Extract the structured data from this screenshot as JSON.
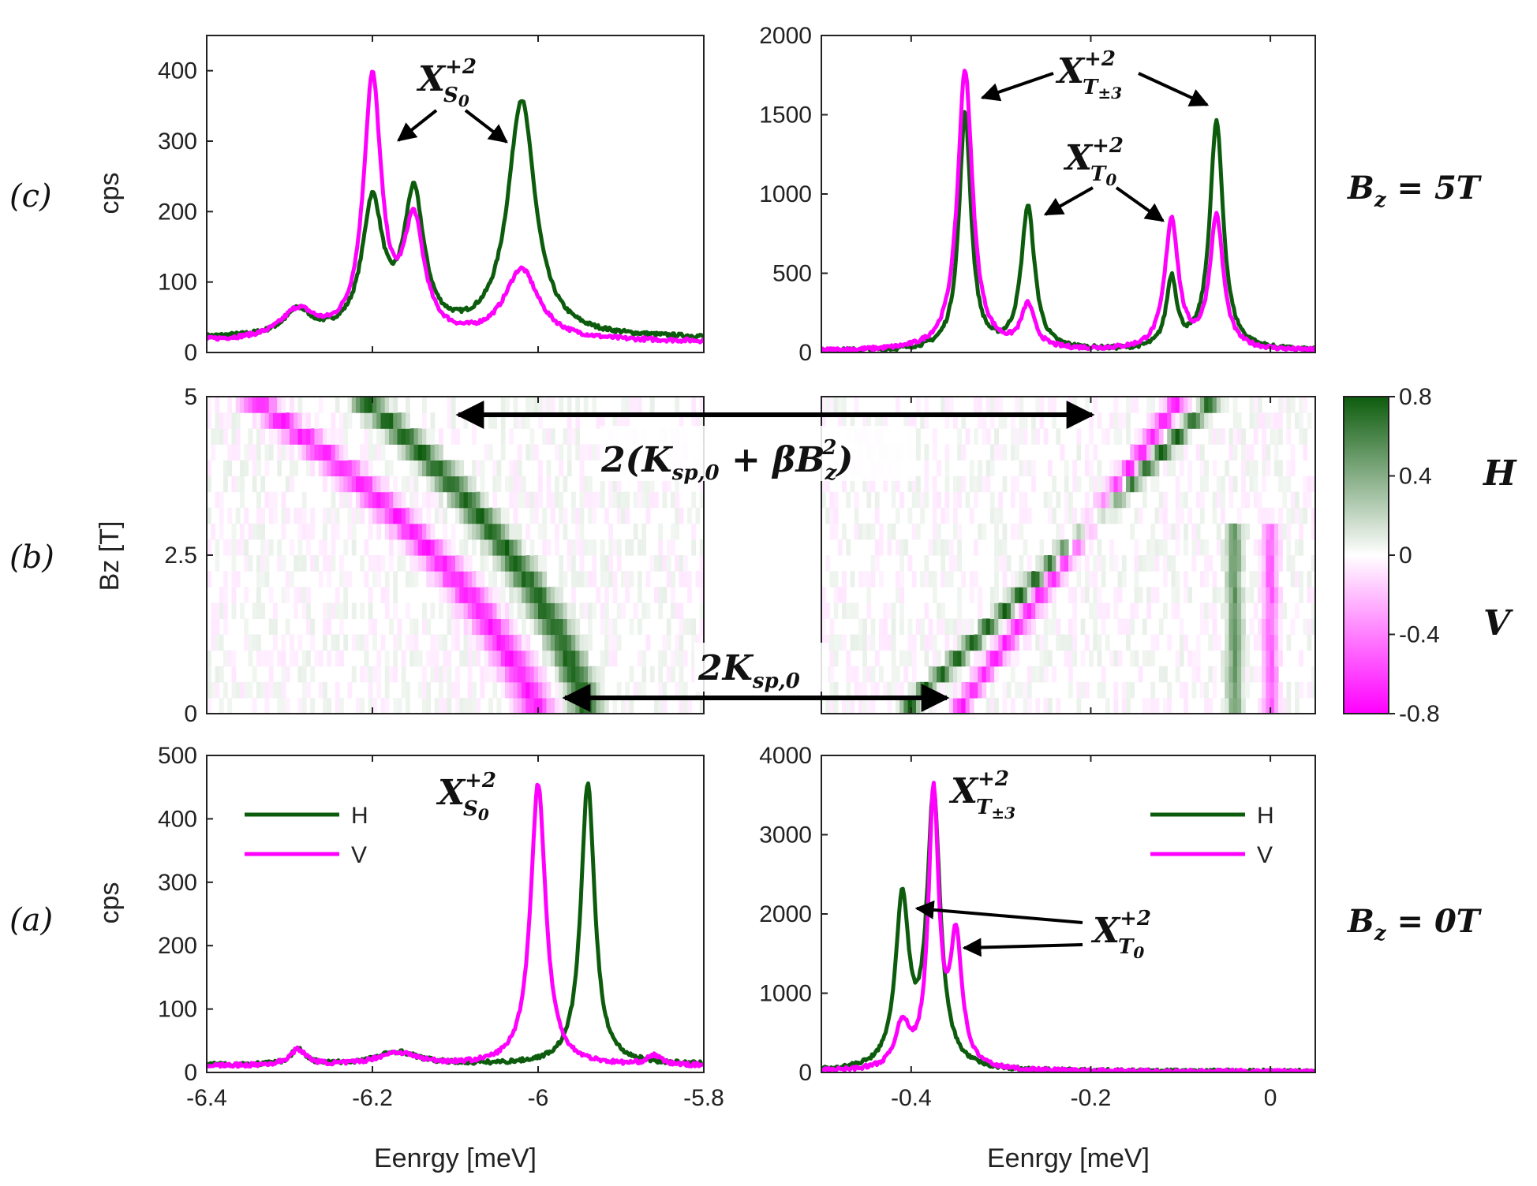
{
  "colors": {
    "H": "#0d5c0d",
    "V": "#ff00ff"
  },
  "labels": {
    "panel_c": "(c)",
    "panel_b": "(b)",
    "panel_a": "(a)",
    "bz_5": "B",
    "bz_5_sub": "z",
    "bz_5_val": " = 5T",
    "bz_0": "B",
    "bz_0_sub": "z",
    "bz_0_val": " = 0T",
    "ylabel_cps": "cps",
    "ylabel_bz": "Bz [T]",
    "xlabel": "Eenrgy [meV]",
    "legend_H": "H",
    "legend_V": "V",
    "colorbar_H": "H",
    "colorbar_V": "V",
    "ann_XS0_main": "X",
    "ann_XS0_sup": "+2",
    "ann_XS0_sub": "S",
    "ann_XS0_sub0": "0",
    "ann_XT3_main": "X",
    "ann_XT3_sup": "+2",
    "ann_XT3_sub": "T",
    "ann_XT3_subsub": "±3",
    "ann_XT0_main": "X",
    "ann_XT0_sup": "+2",
    "ann_XT0_sub": "T",
    "ann_XT0_subsub": "0",
    "ann_K_top": "2(K",
    "ann_K_top_sub": "sp,0",
    "ann_K_top_rest": " + βB",
    "ann_K_top_b_sub": "z",
    "ann_K_top_b_sup": "2",
    "ann_K_top_close": ")",
    "ann_K_bot": "2K",
    "ann_K_bot_sub": "sp,0"
  },
  "chart_data": [
    {
      "id": "c_left",
      "type": "line",
      "panel": "(c)",
      "xlim": [
        -6.4,
        -5.8
      ],
      "ylim": [
        0,
        450
      ],
      "yticks": [
        0,
        100,
        200,
        300,
        400
      ],
      "ylabel": "cps",
      "series": [
        {
          "name": "H",
          "peaks": [
            [
              -6.29,
              35,
              0.02
            ],
            [
              -6.2,
              185,
              0.015
            ],
            [
              -6.15,
              195,
              0.015
            ],
            [
              -6.02,
              335,
              0.02
            ]
          ],
          "baseline": 20
        },
        {
          "name": "V",
          "peaks": [
            [
              -6.29,
              40,
              0.025
            ],
            [
              -6.2,
              365,
              0.013
            ],
            [
              -6.15,
              160,
              0.015
            ],
            [
              -6.02,
              100,
              0.025
            ]
          ],
          "baseline": 15
        }
      ]
    },
    {
      "id": "c_right",
      "type": "line",
      "panel": "(c)",
      "xlim": [
        -0.5,
        0.05
      ],
      "ylim": [
        0,
        2000
      ],
      "yticks": [
        0,
        500,
        1000,
        1500,
        2000
      ],
      "ylabel": "",
      "series": [
        {
          "name": "H",
          "peaks": [
            [
              -0.34,
              1490,
              0.008
            ],
            [
              -0.27,
              900,
              0.009
            ],
            [
              -0.11,
              440,
              0.007
            ],
            [
              -0.06,
              1440,
              0.009
            ]
          ],
          "baseline": 8
        },
        {
          "name": "V",
          "peaks": [
            [
              -0.34,
              1770,
              0.01
            ],
            [
              -0.27,
              270,
              0.009
            ],
            [
              -0.11,
              820,
              0.009
            ],
            [
              -0.06,
              840,
              0.009
            ]
          ],
          "baseline": 8
        }
      ]
    },
    {
      "id": "b_left",
      "type": "heatmap",
      "panel": "(b)",
      "xlim": [
        -6.4,
        -5.8
      ],
      "ylim": [
        0,
        5
      ],
      "yticks": [
        0,
        2.5,
        5
      ],
      "ylabel": "Bz [T]",
      "colorbar": {
        "min": -0.8,
        "max": 0.8,
        "ticks": [
          0.8,
          0.4,
          0,
          -0.4,
          -0.8
        ]
      }
    },
    {
      "id": "b_right",
      "type": "heatmap",
      "panel": "(b)",
      "xlim": [
        -0.5,
        0.05
      ],
      "ylim": [
        0,
        5
      ]
    },
    {
      "id": "a_left",
      "type": "line",
      "panel": "(a)",
      "xlim": [
        -6.4,
        -5.8
      ],
      "ylim": [
        0,
        500
      ],
      "xticks": [
        -6.4,
        -6.2,
        -6,
        -5.8
      ],
      "yticks": [
        0,
        100,
        200,
        300,
        400,
        500
      ],
      "xlabel": "Eenrgy [meV]",
      "ylabel": "cps",
      "legend": [
        "H",
        "V"
      ],
      "series": [
        {
          "name": "H",
          "peaks": [
            [
              -6.29,
              25,
              0.01
            ],
            [
              -6.17,
              20,
              0.03
            ],
            [
              -5.94,
              445,
              0.01
            ]
          ],
          "baseline": 12
        },
        {
          "name": "V",
          "peaks": [
            [
              -6.29,
              25,
              0.012
            ],
            [
              -6.17,
              20,
              0.03
            ],
            [
              -6.0,
              445,
              0.011
            ],
            [
              -5.86,
              15,
              0.01
            ]
          ],
          "baseline": 10
        }
      ]
    },
    {
      "id": "a_right",
      "type": "line",
      "panel": "(a)",
      "xlim": [
        -0.5,
        0.05
      ],
      "ylim": [
        0,
        4000
      ],
      "xticks": [
        -0.4,
        -0.2,
        0
      ],
      "yticks": [
        0,
        1000,
        2000,
        3000,
        4000
      ],
      "xlabel": "Eenrgy [meV]",
      "legend": [
        "H",
        "V"
      ],
      "series": [
        {
          "name": "H",
          "peaks": [
            [
              -0.41,
              2090,
              0.009
            ],
            [
              -0.375,
              3440,
              0.009
            ]
          ],
          "baseline": 10
        },
        {
          "name": "V",
          "peaks": [
            [
              -0.41,
              550,
              0.009
            ],
            [
              -0.375,
              3440,
              0.007
            ],
            [
              -0.35,
              1600,
              0.008
            ]
          ],
          "baseline": 10
        }
      ]
    }
  ]
}
